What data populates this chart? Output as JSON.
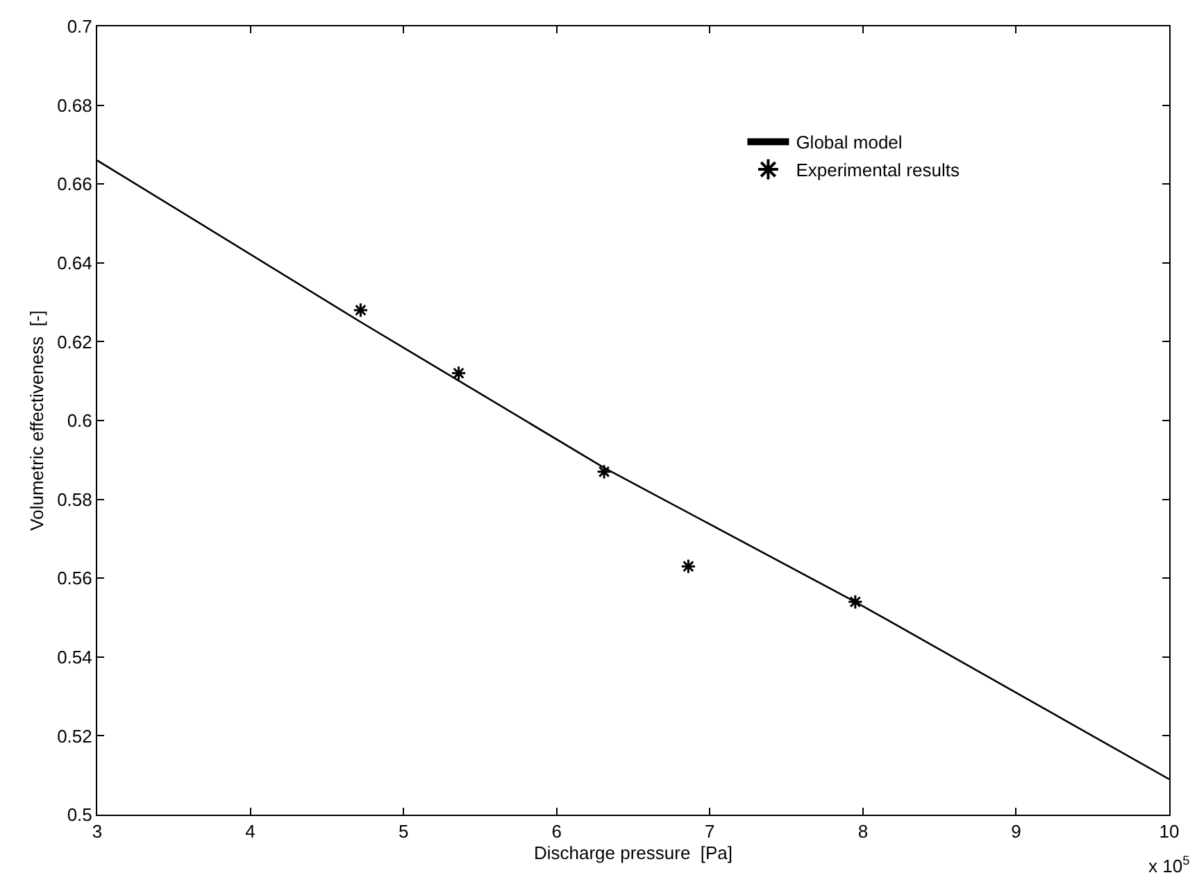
{
  "chart_data": {
    "type": "scatter",
    "xlabel": "Discharge pressure  [Pa]",
    "ylabel": "Volumetric effectiveness  [-]",
    "xlim": [
      3,
      10
    ],
    "xticks": [
      3,
      4,
      5,
      6,
      7,
      8,
      9,
      10
    ],
    "ylim": [
      0.5,
      0.7
    ],
    "yticks": [
      0.5,
      0.52,
      0.54,
      0.56,
      0.58,
      0.6,
      0.62,
      0.64,
      0.66,
      0.68,
      0.7
    ],
    "legend": "top right",
    "annotations": [
      "x 10$^{5}$"
    ],
    "series": [
      {
        "name": "Global model",
        "type": "line",
        "color": "#000000",
        "line_style": "solid",
        "marker": "none",
        "x": [
          3,
          4.72,
          6.31,
          7.95,
          10
        ],
        "values": [
          0.666,
          0.625,
          0.588,
          0.554,
          0.509
        ]
      },
      {
        "name": "Experimental results",
        "color": "#000000",
        "marker": "cross",
        "x": [
          4.72,
          5.36,
          6.31,
          6.86,
          7.95
        ],
        "values": [
          0.628,
          0.612,
          0.587,
          0.563,
          0.554
        ]
      }
    ]
  }
}
